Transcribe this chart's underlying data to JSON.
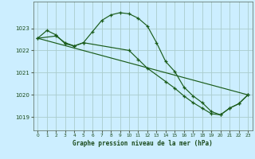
{
  "title": "Graphe pression niveau de la mer (hPa)",
  "bg_color": "#cceeff",
  "grid_color": "#aacccc",
  "line_color": "#1a5c1a",
  "marker_color": "#1a5c1a",
  "xlim": [
    -0.5,
    23.5
  ],
  "ylim": [
    1018.4,
    1024.2
  ],
  "yticks": [
    1019,
    1020,
    1021,
    1022,
    1023
  ],
  "xticks": [
    0,
    1,
    2,
    3,
    4,
    5,
    6,
    7,
    8,
    9,
    10,
    11,
    12,
    13,
    14,
    15,
    16,
    17,
    18,
    19,
    20,
    21,
    22,
    23
  ],
  "series1_x": [
    0,
    1,
    2,
    3,
    4,
    5,
    6,
    7,
    8,
    9,
    10,
    11,
    12,
    13,
    14,
    15,
    16,
    17,
    18,
    19,
    20,
    21,
    22,
    23
  ],
  "series1_y": [
    1022.55,
    1022.9,
    1022.7,
    1022.3,
    1022.2,
    1022.35,
    1022.85,
    1023.35,
    1023.6,
    1023.7,
    1023.65,
    1023.45,
    1023.1,
    1022.35,
    1021.5,
    1021.05,
    1020.35,
    1019.95,
    1019.65,
    1019.25,
    1019.1,
    1019.4,
    1019.6,
    1020.0
  ],
  "series2_x": [
    0,
    2,
    3,
    4,
    5,
    10,
    11,
    12,
    14,
    15,
    16,
    17,
    18,
    19,
    20,
    21,
    22,
    23
  ],
  "series2_y": [
    1022.55,
    1022.65,
    1022.35,
    1022.2,
    1022.35,
    1022.0,
    1021.6,
    1021.2,
    1020.6,
    1020.3,
    1019.95,
    1019.65,
    1019.4,
    1019.15,
    1019.1,
    1019.4,
    1019.6,
    1020.0
  ],
  "series3_x": [
    0,
    23
  ],
  "series3_y": [
    1022.55,
    1020.0
  ]
}
